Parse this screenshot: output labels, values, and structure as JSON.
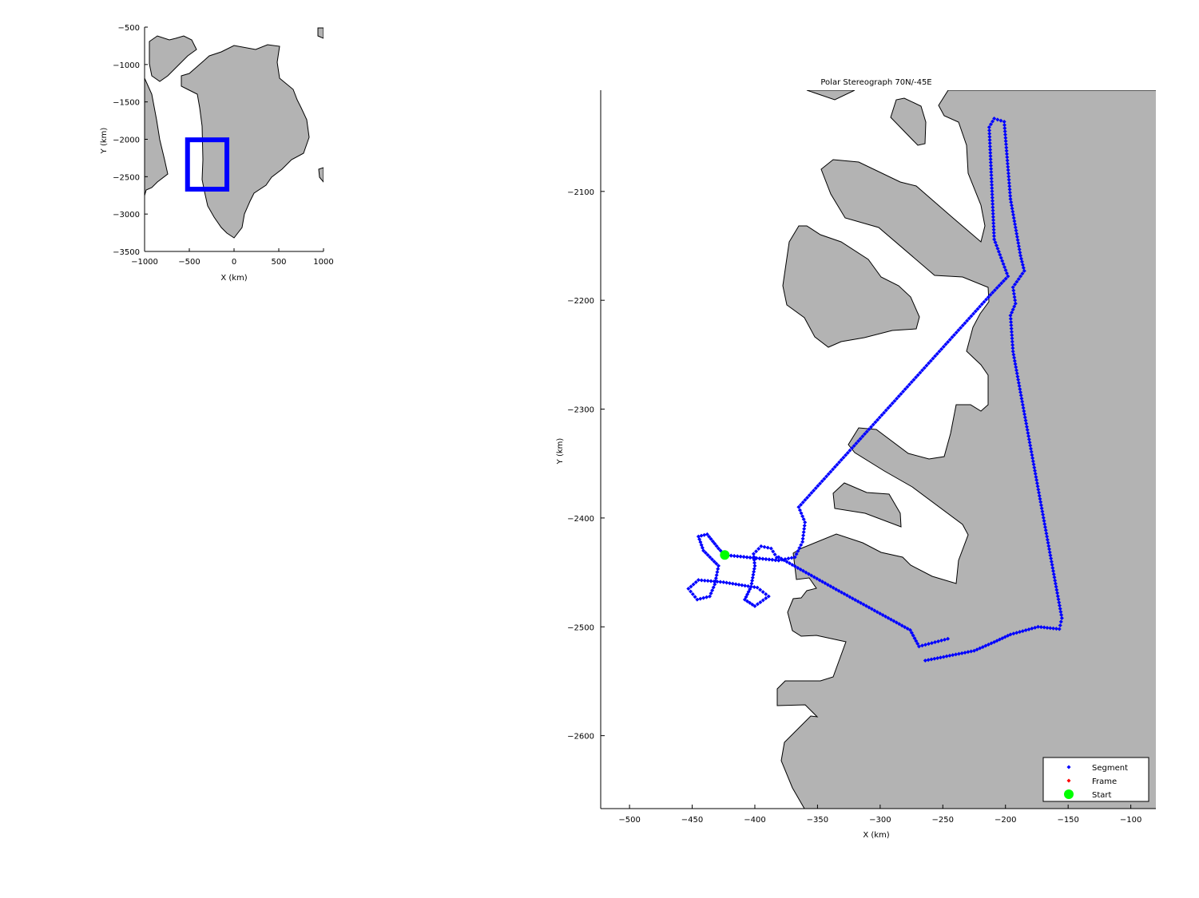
{
  "chart_data": [
    {
      "type": "map",
      "title": "",
      "xlabel": "X (km)",
      "ylabel": "Y (km)",
      "xlim": [
        -1000,
        1000
      ],
      "ylim": [
        -3500,
        -500
      ],
      "xticks": [
        "-1000",
        "-500",
        "0",
        "500",
        "1000"
      ],
      "yticks": [
        "-500",
        "-1000",
        "-1500",
        "-2000",
        "-2500",
        "-3000",
        "-3500"
      ],
      "land_color": "#b3b3b3",
      "region_box": {
        "x": [
          -520,
          -80
        ],
        "y": [
          -2667,
          -2007
        ],
        "color": "#0000ff"
      }
    },
    {
      "type": "scatter",
      "title": "Polar Stereograph 70N/-45E",
      "xlabel": "X (km)",
      "ylabel": "Y (km)",
      "xlim": [
        -523,
        -80
      ],
      "ylim": [
        -2667,
        -2007
      ],
      "xticks": [
        "-500",
        "-450",
        "-400",
        "-350",
        "-300",
        "-250",
        "-200",
        "-150",
        "-100"
      ],
      "yticks": [
        "-2100",
        "-2200",
        "-2300",
        "-2400",
        "-2500",
        "-2600"
      ],
      "land_color": "#b3b3b3",
      "legend": {
        "position": "bottom-right",
        "entries": [
          {
            "label": "Segment",
            "color": "#0000ff",
            "marker": "diamond"
          },
          {
            "label": "Frame",
            "color": "#ff0000",
            "marker": "diamond"
          },
          {
            "label": "Start",
            "color": "#00ff00",
            "marker": "circle"
          }
        ]
      },
      "series": [
        {
          "name": "Segment",
          "color": "#0000ff",
          "tracks": [
            [
              [
                -424,
                -2434
              ],
              [
                -381,
                -2439
              ],
              [
                -387,
                -2428
              ],
              [
                -395,
                -2426
              ],
              [
                -401,
                -2433
              ],
              [
                -400,
                -2444
              ],
              [
                -403,
                -2463
              ],
              [
                -408,
                -2475
              ],
              [
                -400,
                -2481
              ],
              [
                -389,
                -2472
              ],
              [
                -398,
                -2464
              ],
              [
                -425,
                -2459
              ],
              [
                -445,
                -2457
              ],
              [
                -453,
                -2465
              ],
              [
                -446,
                -2475
              ],
              [
                -436,
                -2472
              ],
              [
                -432,
                -2461
              ],
              [
                -429,
                -2444
              ],
              [
                -441,
                -2430
              ],
              [
                -445,
                -2417
              ],
              [
                -438,
                -2415
              ],
              [
                -429,
                -2428
              ],
              [
                -424,
                -2434
              ],
              [
                -381,
                -2439
              ],
              [
                -368,
                -2436
              ],
              [
                -362,
                -2422
              ],
              [
                -360,
                -2404
              ],
              [
                -365,
                -2390
              ],
              [
                -212,
                -2195
              ],
              [
                -198,
                -2178
              ],
              [
                -209,
                -2144
              ],
              [
                -213,
                -2041
              ],
              [
                -209,
                -2033
              ],
              [
                -201,
                -2036
              ],
              [
                -196,
                -2107
              ],
              [
                -188,
                -2159
              ],
              [
                -185,
                -2173
              ],
              [
                -194,
                -2188
              ],
              [
                -192,
                -2203
              ],
              [
                -196,
                -2214
              ],
              [
                -194,
                -2247
              ],
              [
                -155,
                -2492
              ],
              [
                -157,
                -2502
              ],
              [
                -174,
                -2500
              ],
              [
                -196,
                -2507
              ],
              [
                -209,
                -2514
              ],
              [
                -225,
                -2522
              ],
              [
                -264,
                -2531
              ]
            ],
            [
              [
                -381,
                -2436
              ],
              [
                -333,
                -2467
              ],
              [
                -276,
                -2503
              ],
              [
                -269,
                -2518
              ],
              [
                -246,
                -2511
              ]
            ]
          ]
        },
        {
          "name": "Frame",
          "color": "#ff0000",
          "tracks": []
        }
      ],
      "start": {
        "x": -424,
        "y": -2434,
        "color": "#00ff00"
      }
    }
  ]
}
